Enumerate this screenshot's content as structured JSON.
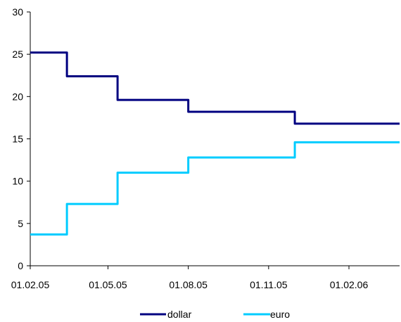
{
  "chart_data": {
    "type": "line",
    "title": "",
    "xlabel": "",
    "ylabel": "",
    "x_tick_labels": [
      "01.02.05",
      "01.05.05",
      "01.08.05",
      "01.11.05",
      "01.02.06"
    ],
    "y_tick_labels": [
      "0",
      "5",
      "10",
      "15",
      "20",
      "25",
      "30"
    ],
    "ylim": [
      0,
      30
    ],
    "xlim": [
      "2005-02-01",
      "2006-03-31"
    ],
    "grid": false,
    "legend_position": "bottom",
    "step": true,
    "series": [
      {
        "name": "dollar",
        "color": "#000080",
        "points": [
          {
            "x": "2005-02-01",
            "y": 25.2
          },
          {
            "x": "2005-03-15",
            "y": 22.4
          },
          {
            "x": "2005-05-12",
            "y": 19.6
          },
          {
            "x": "2005-08-01",
            "y": 18.2
          },
          {
            "x": "2005-12-01",
            "y": 16.8
          },
          {
            "x": "2006-03-31",
            "y": 16.8
          }
        ]
      },
      {
        "name": "euro",
        "color": "#00CCFF",
        "points": [
          {
            "x": "2005-02-01",
            "y": 3.7
          },
          {
            "x": "2005-03-15",
            "y": 7.3
          },
          {
            "x": "2005-05-12",
            "y": 11.0
          },
          {
            "x": "2005-08-01",
            "y": 12.8
          },
          {
            "x": "2005-12-01",
            "y": 14.6
          },
          {
            "x": "2006-03-31",
            "y": 14.6
          }
        ]
      }
    ]
  }
}
